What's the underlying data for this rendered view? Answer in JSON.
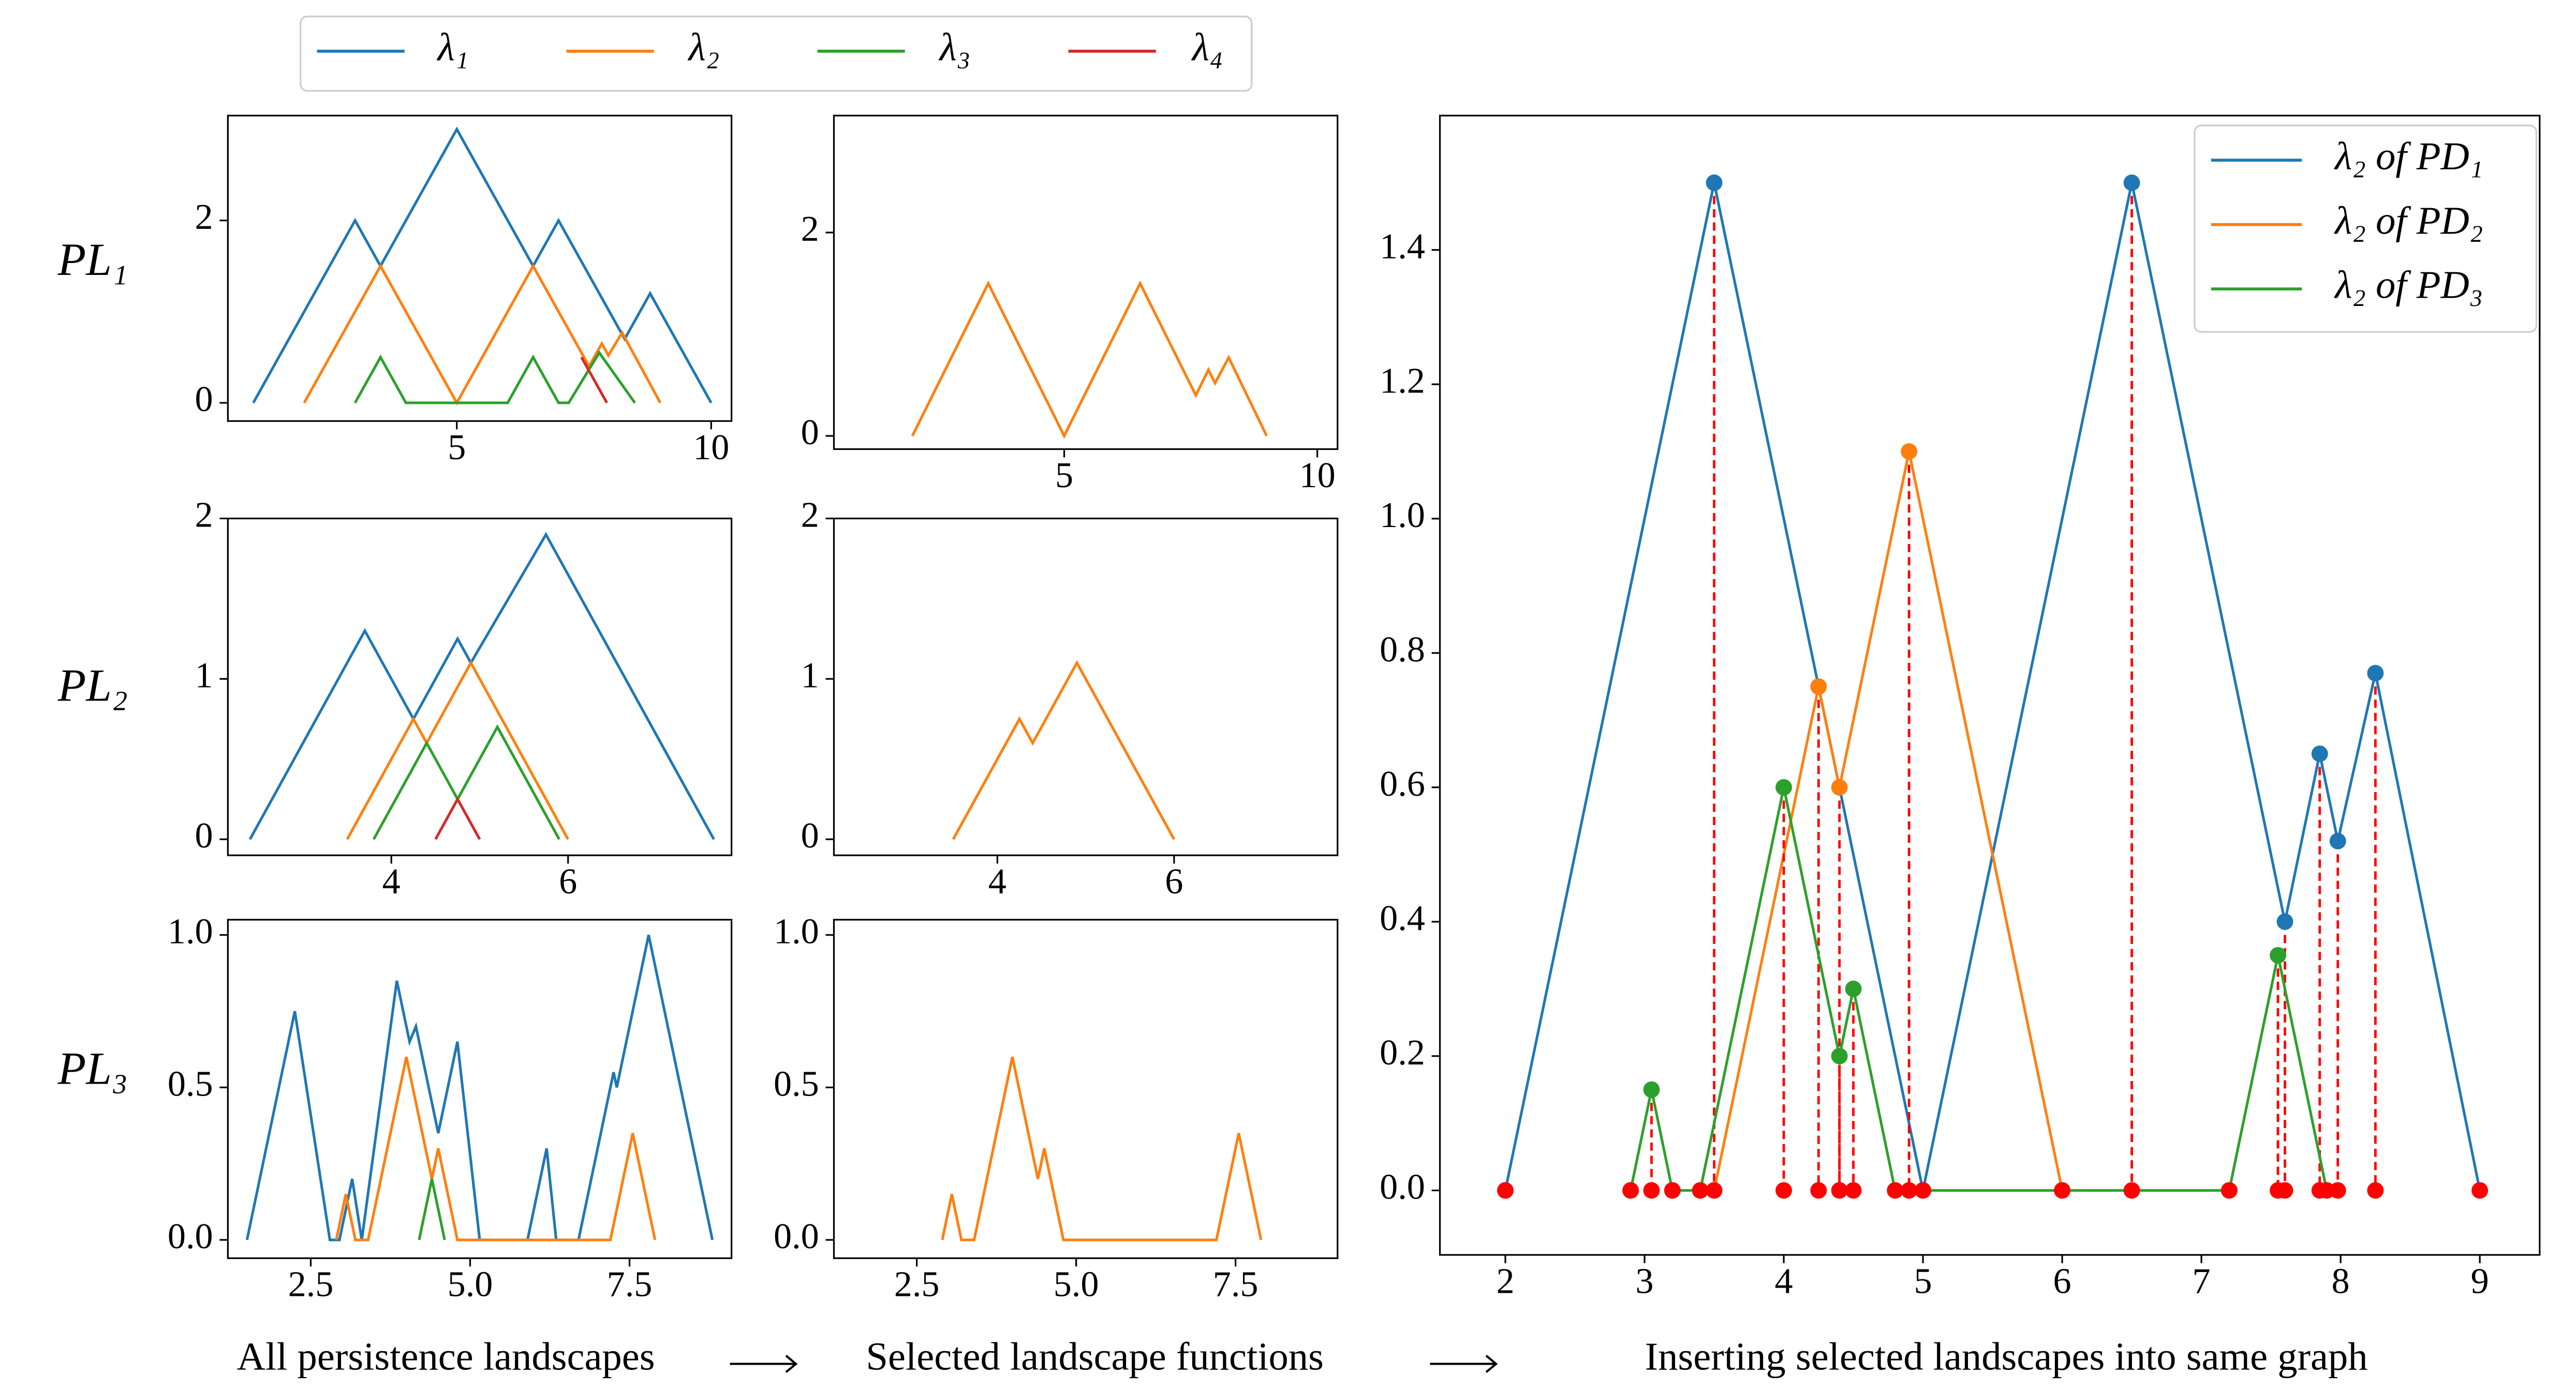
{
  "legend": {
    "entries": [
      {
        "name": "λ₁",
        "color": "#1f77b4"
      },
      {
        "name": "λ₂",
        "color": "#ff7f0e"
      },
      {
        "name": "λ₃",
        "color": "#2ca02c"
      },
      {
        "name": "λ₄",
        "color": "#d62728"
      }
    ]
  },
  "row_labels": [
    "PL₁",
    "PL₂",
    "PL₃"
  ],
  "captions": [
    "All persistence landscapes",
    "Selected landscape functions",
    "Inserting selected landscapes into same graph"
  ],
  "chart_data": [
    {
      "type": "line",
      "xlim": [
        0.5,
        10.4
      ],
      "ylim": [
        -0.2,
        3.15
      ],
      "xticks": [
        5,
        10
      ],
      "yticks": [
        0,
        2
      ],
      "series": [
        {
          "color": "#1f77b4",
          "x": [
            1,
            3,
            3.5,
            5,
            6.5,
            7,
            8.3,
            8.8,
            10
          ],
          "values": [
            0,
            2,
            1.5,
            3,
            1.5,
            2,
            0.7,
            1.2,
            0
          ]
        },
        {
          "color": "#ff7f0e",
          "x": [
            2,
            3.5,
            5,
            6.5,
            7.6,
            7.85,
            7.98,
            8.25,
            9
          ],
          "values": [
            0,
            1.5,
            0,
            1.5,
            0.4,
            0.65,
            0.52,
            0.77,
            0
          ]
        },
        {
          "color": "#2ca02c",
          "x": [
            3,
            3.5,
            4,
            6,
            6.5,
            7,
            7.2,
            7.8,
            8.5
          ],
          "values": [
            0,
            0.5,
            0,
            0,
            0.5,
            0,
            0,
            0.55,
            0
          ]
        },
        {
          "color": "#d62728",
          "x": [
            7.45,
            7.95
          ],
          "values": [
            0.5,
            0
          ]
        }
      ]
    },
    {
      "type": "line",
      "xlim": [
        0.45,
        10.4
      ],
      "ylim": [
        -0.13,
        3.15
      ],
      "xticks": [
        5,
        10
      ],
      "yticks": [
        0,
        2
      ],
      "series": [
        {
          "color": "#ff7f0e",
          "x": [
            2,
            3.5,
            5,
            6.5,
            7.6,
            7.85,
            7.98,
            8.25,
            9
          ],
          "values": [
            0,
            1.5,
            0,
            1.5,
            0.4,
            0.65,
            0.52,
            0.77,
            0
          ]
        }
      ]
    },
    {
      "type": "line",
      "xlim": [
        2.15,
        7.85
      ],
      "ylim": [
        -0.1,
        2
      ],
      "xticks": [
        4,
        6
      ],
      "yticks": [
        0,
        1,
        2
      ],
      "series": [
        {
          "color": "#1f77b4",
          "x": [
            2.4,
            3.7,
            4.25,
            4.75,
            4.9,
            5.75,
            7.65
          ],
          "values": [
            0,
            1.3,
            0.75,
            1.25,
            1.1,
            1.9,
            0
          ]
        },
        {
          "color": "#ff7f0e",
          "x": [
            3.5,
            4.25,
            4.4,
            4.9,
            6
          ],
          "values": [
            0,
            0.75,
            0.6,
            1.1,
            0
          ]
        },
        {
          "color": "#2ca02c",
          "x": [
            3.8,
            4.4,
            4.75,
            5.2,
            5.9
          ],
          "values": [
            0,
            0.6,
            0.25,
            0.7,
            0
          ]
        },
        {
          "color": "#d62728",
          "x": [
            4.5,
            4.75,
            5
          ],
          "values": [
            0,
            0.25,
            0
          ]
        }
      ]
    },
    {
      "type": "line",
      "xlim": [
        2.15,
        7.85
      ],
      "ylim": [
        -0.1,
        2
      ],
      "xticks": [
        4,
        6
      ],
      "yticks": [
        0,
        1,
        2
      ],
      "series": [
        {
          "color": "#ff7f0e",
          "x": [
            3.5,
            4.25,
            4.4,
            4.9,
            6
          ],
          "values": [
            0,
            0.75,
            0.6,
            1.1,
            0
          ]
        }
      ]
    },
    {
      "type": "line",
      "xlim": [
        1.2,
        9.1
      ],
      "ylim": [
        -0.06,
        1.05
      ],
      "xticks": [
        2.5,
        {
          "value": 5,
          "label": "5.0"
        },
        7.5
      ],
      "yticks": [
        {
          "value": 0,
          "label": "0.0"
        },
        0.5,
        {
          "value": 1,
          "label": "1.0"
        }
      ],
      "series": [
        {
          "color": "#1f77b4",
          "x": [
            1.5,
            2.25,
            2.8,
            2.95,
            3.15,
            3.3,
            3.85,
            4.05,
            4.15,
            4.5,
            4.8,
            5.15,
            5.9,
            6.2,
            6.35,
            6.7,
            7.25,
            7.3,
            7.8,
            8.8
          ],
          "values": [
            0,
            0.75,
            0,
            0,
            0.2,
            0,
            0.85,
            0.65,
            0.7,
            0.35,
            0.65,
            0,
            0,
            0.3,
            0,
            0,
            0.55,
            0.5,
            1,
            0
          ]
        },
        {
          "color": "#ff7f0e",
          "x": [
            2.9,
            3.05,
            3.2,
            3.4,
            4,
            4.4,
            4.5,
            4.8,
            7.2,
            7.55,
            7.9
          ],
          "values": [
            0,
            0.15,
            0,
            0,
            0.6,
            0.2,
            0.3,
            0,
            0,
            0.35,
            0
          ]
        },
        {
          "color": "#2ca02c",
          "x": [
            4.2,
            4.4,
            4.6
          ],
          "values": [
            0,
            0.2,
            0
          ]
        }
      ]
    },
    {
      "type": "line",
      "xlim": [
        1.2,
        9.1
      ],
      "ylim": [
        -0.06,
        1.05
      ],
      "xticks": [
        2.5,
        {
          "value": 5,
          "label": "5.0"
        },
        7.5
      ],
      "yticks": [
        {
          "value": 0,
          "label": "0.0"
        },
        0.5,
        {
          "value": 1,
          "label": "1.0"
        }
      ],
      "series": [
        {
          "color": "#ff7f0e",
          "x": [
            2.9,
            3.05,
            3.2,
            3.4,
            4,
            4.4,
            4.5,
            4.8,
            7.2,
            7.55,
            7.9
          ],
          "values": [
            0,
            0.15,
            0,
            0,
            0.6,
            0.2,
            0.3,
            0,
            0,
            0.35,
            0
          ]
        }
      ]
    },
    {
      "type": "line",
      "markers": true,
      "legend_position": "upper right",
      "drop_lines": {
        "color": "#ff0000",
        "style": "dashed"
      },
      "xlim": [
        1.53,
        9.43
      ],
      "ylim": [
        -0.096,
        1.6
      ],
      "xticks": [
        2,
        3,
        4,
        5,
        6,
        7,
        8,
        9
      ],
      "yticks": [
        {
          "value": 0,
          "label": "0.0"
        },
        0.2,
        0.4,
        0.6,
        0.8,
        {
          "value": 1,
          "label": "1.0"
        },
        1.2,
        1.4
      ],
      "series": [
        {
          "name": "λ₂ of PD₁",
          "color": "#1f77b4",
          "x": [
            2,
            3.5,
            5,
            6.5,
            7.6,
            7.85,
            7.98,
            8.25,
            9
          ],
          "values": [
            0,
            1.5,
            0,
            1.5,
            0.4,
            0.65,
            0.52,
            0.77,
            0
          ]
        },
        {
          "name": "λ₂ of PD₂",
          "color": "#ff7f0e",
          "x": [
            3.5,
            4.25,
            4.4,
            4.9,
            6
          ],
          "values": [
            0,
            0.75,
            0.6,
            1.1,
            0
          ]
        },
        {
          "name": "λ₂ of PD₃",
          "color": "#2ca02c",
          "x": [
            2.9,
            3.05,
            3.2,
            3.4,
            4,
            4.4,
            4.5,
            4.8,
            7.2,
            7.55,
            7.9
          ],
          "values": [
            0,
            0.15,
            0,
            0,
            0.6,
            0.2,
            0.3,
            0,
            0,
            0.35,
            0
          ]
        },
        {
          "color": "#ff0000",
          "x": [
            2,
            2.9,
            3.05,
            3.2,
            3.4,
            3.5,
            4,
            4.25,
            4.4,
            4.5,
            4.8,
            4.9,
            5,
            6,
            6.5,
            7.2,
            7.55,
            7.6,
            7.85,
            7.9,
            7.98,
            8.25,
            9
          ],
          "values": [
            0,
            0,
            0,
            0,
            0,
            0,
            0,
            0,
            0,
            0,
            0,
            0,
            0,
            0,
            0,
            0,
            0,
            0,
            0,
            0,
            0,
            0,
            0
          ]
        }
      ]
    }
  ]
}
